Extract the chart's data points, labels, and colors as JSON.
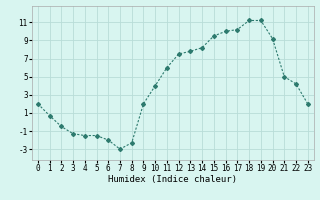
{
  "x": [
    0,
    1,
    2,
    3,
    4,
    5,
    6,
    7,
    8,
    9,
    10,
    11,
    12,
    13,
    14,
    15,
    16,
    17,
    18,
    19,
    20,
    21,
    22,
    23
  ],
  "y": [
    2,
    0.7,
    -0.5,
    -1.3,
    -1.5,
    -1.5,
    -2.0,
    -3.0,
    -2.3,
    2.0,
    4.0,
    6.0,
    7.5,
    7.8,
    8.2,
    9.5,
    10.0,
    10.2,
    11.2,
    11.2,
    9.2,
    5.0,
    4.2,
    2.0
  ],
  "line_color": "#2d7a6e",
  "marker": "D",
  "marker_size": 2,
  "bg_color": "#d8f5f0",
  "grid_color": "#b8ddd8",
  "xlabel": "Humidex (Indice chaleur)",
  "xlim": [
    -0.5,
    23.5
  ],
  "ylim": [
    -4.2,
    12.8
  ],
  "yticks": [
    -3,
    -1,
    1,
    3,
    5,
    7,
    9,
    11
  ],
  "xticks": [
    0,
    1,
    2,
    3,
    4,
    5,
    6,
    7,
    8,
    9,
    10,
    11,
    12,
    13,
    14,
    15,
    16,
    17,
    18,
    19,
    20,
    21,
    22,
    23
  ],
  "tick_fontsize": 5.5,
  "label_fontsize": 6.5
}
